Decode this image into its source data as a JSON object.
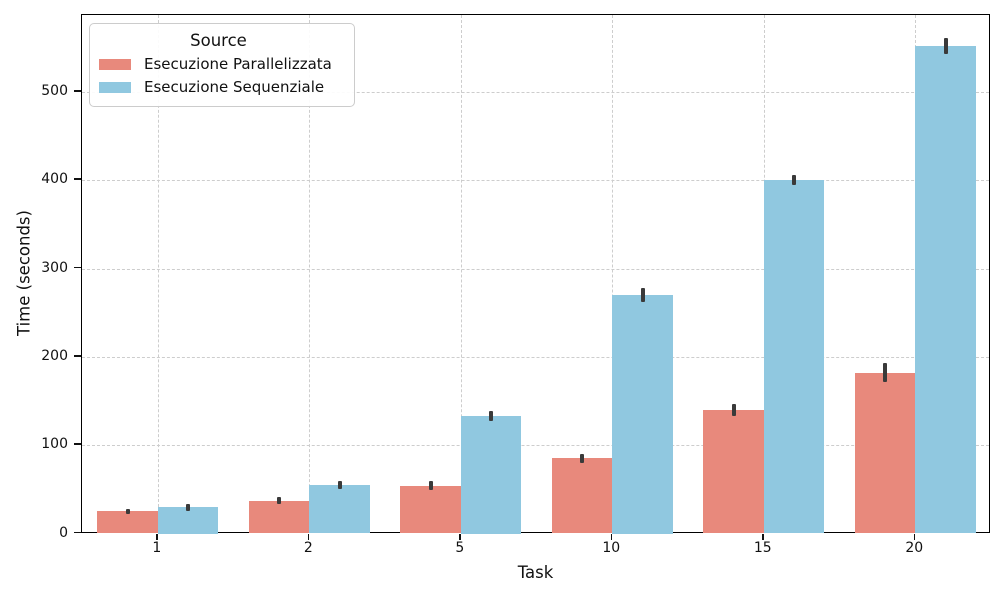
{
  "chart_data": {
    "type": "bar",
    "title": "",
    "xlabel": "Task",
    "ylabel": "Time (seconds)",
    "legend": {
      "title": "Source",
      "position": "upper-left"
    },
    "categories": [
      "1",
      "2",
      "5",
      "10",
      "15",
      "20"
    ],
    "series": [
      {
        "name": "Esecuzione Parallelizzata",
        "slug": "parallelizzata",
        "color": "#e8897c",
        "values": [
          25,
          37,
          54,
          85,
          140,
          182
        ],
        "errors": [
          3,
          4,
          5,
          5,
          7,
          11
        ]
      },
      {
        "name": "Esecuzione Sequenziale",
        "slug": "sequenziale",
        "color": "#90c8e0",
        "values": [
          30,
          55,
          133,
          270,
          400,
          552
        ],
        "errors": [
          4,
          5,
          6,
          8,
          6,
          9
        ]
      }
    ],
    "yticks": [
      0,
      100,
      200,
      300,
      400,
      500
    ],
    "ylim": [
      0,
      587
    ],
    "grid": {
      "style": "dashed",
      "color": "#cdcdcd",
      "axes": "both"
    },
    "error_bar_color": "#3a3a3a",
    "spine_color": "#000000",
    "background": "#ffffff"
  }
}
